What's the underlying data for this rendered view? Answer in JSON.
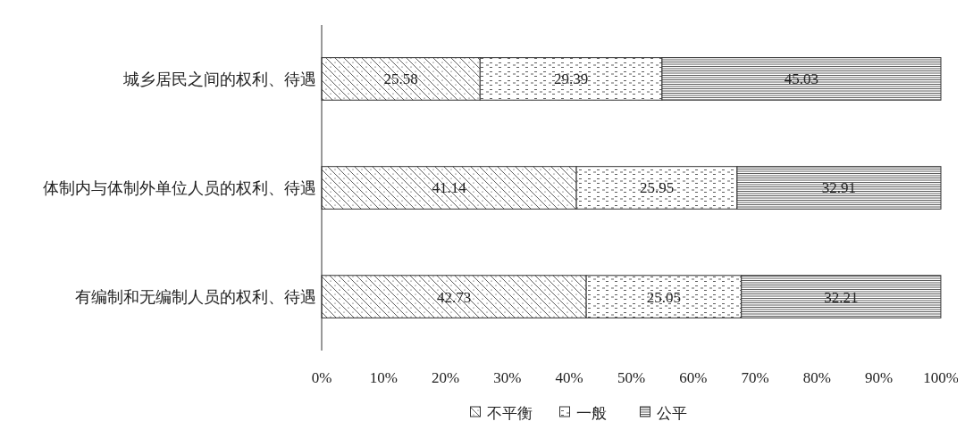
{
  "chart_data": {
    "type": "bar",
    "orientation": "horizontal",
    "stacked": true,
    "categories": [
      "城乡居民之间的权利、待遇",
      "体制内与体制外单位人员的权利、待遇",
      "有编制和无编制人员的权利、待遇"
    ],
    "series": [
      {
        "name": "不平衡",
        "color": "#333333",
        "values": [
          25.58,
          41.14,
          42.73
        ]
      },
      {
        "name": "一般",
        "color": "#333333",
        "values": [
          29.39,
          25.95,
          25.05
        ]
      },
      {
        "name": "公平",
        "color": "#333333",
        "values": [
          45.03,
          32.91,
          32.21
        ]
      }
    ],
    "xlim": [
      0,
      100
    ],
    "xticks": [
      {
        "value": 0,
        "label": "0%"
      },
      {
        "value": 10,
        "label": "10%"
      },
      {
        "value": 20,
        "label": "20%"
      },
      {
        "value": 30,
        "label": "30%"
      },
      {
        "value": 40,
        "label": "40%"
      },
      {
        "value": 50,
        "label": "50%"
      },
      {
        "value": 60,
        "label": "60%"
      },
      {
        "value": 70,
        "label": "70%"
      },
      {
        "value": 80,
        "label": "80%"
      },
      {
        "value": 90,
        "label": "90%"
      },
      {
        "value": 100,
        "label": "100%"
      }
    ],
    "data_labels": true,
    "legend": "bottom",
    "grid": false
  }
}
